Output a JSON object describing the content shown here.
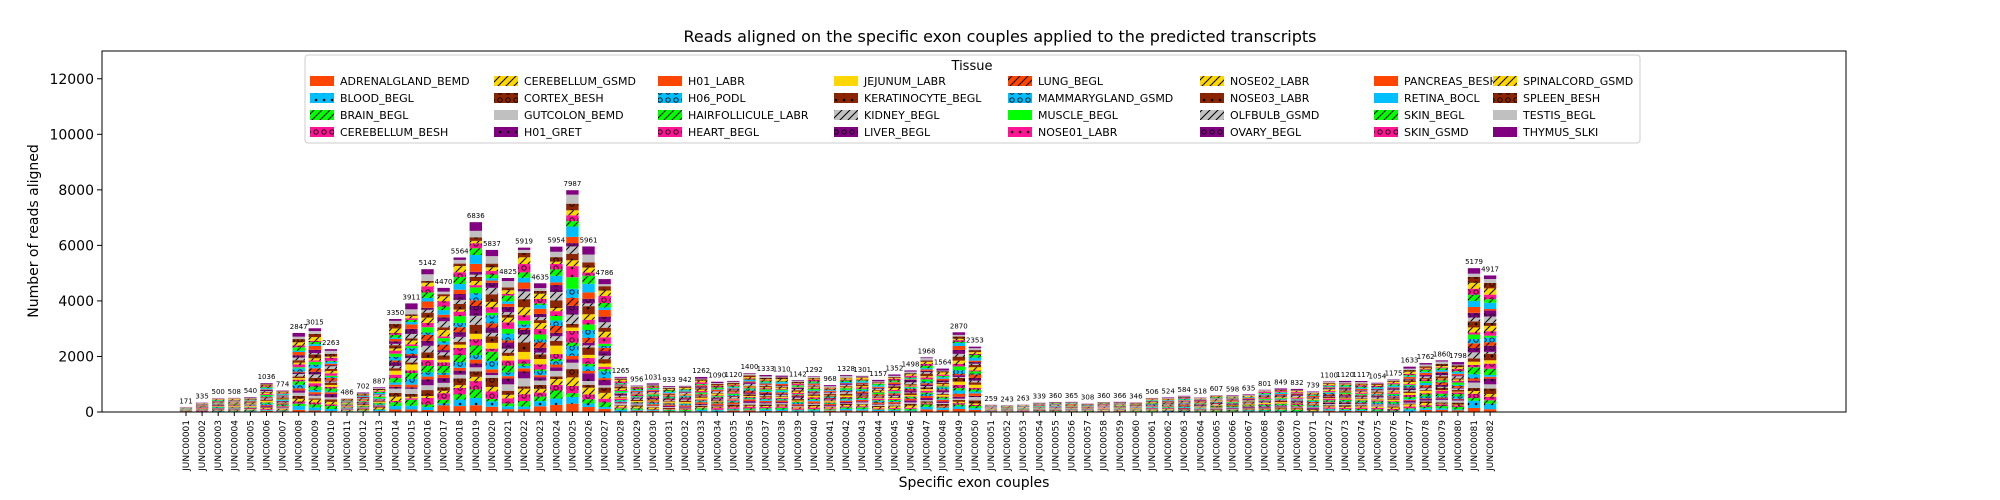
{
  "chart_data": {
    "type": "bar",
    "stacked": true,
    "title": "Reads aligned on the specific exon couples applied to the predicted transcripts",
    "xlabel": "Specific exon couples",
    "ylabel": "Number of reads aligned",
    "ylim": [
      0,
      13000
    ],
    "yticks": [
      0,
      2000,
      4000,
      6000,
      8000,
      10000,
      12000
    ],
    "grid": false,
    "legend": {
      "title": "Tissue",
      "placement": "top-center",
      "columns": 8
    },
    "categories": [
      "JUNC00001",
      "JUNC00002",
      "JUNC00003",
      "JUNC00004",
      "JUNC00005",
      "JUNC00006",
      "JUNC00007",
      "JUNC00008",
      "JUNC00009",
      "JUNC00010",
      "JUNC00011",
      "JUNC00012",
      "JUNC00013",
      "JUNC00014",
      "JUNC00015",
      "JUNC00016",
      "JUNC00017",
      "JUNC00018",
      "JUNC00019",
      "JUNC00020",
      "JUNC00021",
      "JUNC00022",
      "JUNC00023",
      "JUNC00024",
      "JUNC00025",
      "JUNC00026",
      "JUNC00027",
      "JUNC00028",
      "JUNC00029",
      "JUNC00030",
      "JUNC00031",
      "JUNC00032",
      "JUNC00033",
      "JUNC00034",
      "JUNC00035",
      "JUNC00036",
      "JUNC00037",
      "JUNC00038",
      "JUNC00039",
      "JUNC00040",
      "JUNC00041",
      "JUNC00042",
      "JUNC00043",
      "JUNC00044",
      "JUNC00045",
      "JUNC00046",
      "JUNC00047",
      "JUNC00048",
      "JUNC00049",
      "JUNC00050",
      "JUNC00051",
      "JUNC00052",
      "JUNC00053",
      "JUNC00054",
      "JUNC00055",
      "JUNC00056",
      "JUNC00057",
      "JUNC00058",
      "JUNC00059",
      "JUNC00060",
      "JUNC00061",
      "JUNC00062",
      "JUNC00063",
      "JUNC00064",
      "JUNC00065",
      "JUNC00066",
      "JUNC00067",
      "JUNC00068",
      "JUNC00069",
      "JUNC00070",
      "JUNC00071",
      "JUNC00072",
      "JUNC00073",
      "JUNC00074",
      "JUNC00075",
      "JUNC00076",
      "JUNC00077",
      "JUNC00078",
      "JUNC00079",
      "JUNC00080",
      "JUNC00081",
      "JUNC00082"
    ],
    "totals": [
      171,
      335,
      500,
      508,
      540,
      1036,
      774,
      2847,
      3015,
      2263,
      486,
      702,
      887,
      3350,
      3911,
      5142,
      4470,
      5564,
      6836,
      5837,
      4825,
      5919,
      4635,
      5954,
      7987,
      5961,
      4786,
      1265,
      956,
      1031,
      933,
      942,
      1262,
      1090,
      1120,
      1400,
      1333,
      1310,
      1142,
      1292,
      968,
      1328,
      1301,
      1157,
      1352,
      1498,
      1968,
      1564,
      2870,
      2353,
      259,
      243,
      263,
      339,
      360,
      365,
      308,
      360,
      366,
      346,
      506,
      524,
      584,
      518,
      607,
      598,
      635,
      801,
      849,
      832,
      739,
      1100,
      1120,
      1117,
      1054,
      1175,
      1633,
      1762,
      1860,
      1798,
      5179,
      4917
    ],
    "series": [
      {
        "name": "ADRENALGLAND_BEMD",
        "color": "#FF4500",
        "hatch": "none"
      },
      {
        "name": "BLOOD_BEGL",
        "color": "#00BFFF",
        "hatch": "dot"
      },
      {
        "name": "BRAIN_BEGL",
        "color": "#00FF00",
        "hatch": "slash"
      },
      {
        "name": "CEREBELLUM_BESH",
        "color": "#FF1493",
        "hatch": "ring"
      },
      {
        "name": "CEREBELLUM_GSMD",
        "color": "#FFD700",
        "hatch": "slash"
      },
      {
        "name": "CORTEX_BESH",
        "color": "#8B2500",
        "hatch": "ring"
      },
      {
        "name": "GUTCOLON_BEMD",
        "color": "#C0C0C0",
        "hatch": "none"
      },
      {
        "name": "H01_GRET",
        "color": "#800080",
        "hatch": "dot"
      },
      {
        "name": "H01_LABR",
        "color": "#FF4500",
        "hatch": "none"
      },
      {
        "name": "H06_PODL",
        "color": "#00BFFF",
        "hatch": "ring"
      },
      {
        "name": "HAIRFOLLICULE_LABR",
        "color": "#00FF00",
        "hatch": "slash"
      },
      {
        "name": "HEART_BEGL",
        "color": "#FF1493",
        "hatch": "ring"
      },
      {
        "name": "JEJUNUM_LABR",
        "color": "#FFD700",
        "hatch": "none"
      },
      {
        "name": "KERATINOCYTE_BEGL",
        "color": "#8B2500",
        "hatch": "dot"
      },
      {
        "name": "KIDNEY_BEGL",
        "color": "#C0C0C0",
        "hatch": "slash"
      },
      {
        "name": "LIVER_BEGL",
        "color": "#800080",
        "hatch": "ring"
      },
      {
        "name": "LUNG_BEGL",
        "color": "#FF4500",
        "hatch": "slash"
      },
      {
        "name": "MAMMARYGLAND_GSMD",
        "color": "#00BFFF",
        "hatch": "ring"
      },
      {
        "name": "MUSCLE_BEGL",
        "color": "#00FF00",
        "hatch": "none"
      },
      {
        "name": "NOSE01_LABR",
        "color": "#FF1493",
        "hatch": "dot"
      },
      {
        "name": "NOSE02_LABR",
        "color": "#FFD700",
        "hatch": "slash"
      },
      {
        "name": "NOSE03_LABR",
        "color": "#8B2500",
        "hatch": "dot"
      },
      {
        "name": "OLFBULB_GSMD",
        "color": "#C0C0C0",
        "hatch": "slash"
      },
      {
        "name": "OVARY_BEGL",
        "color": "#800080",
        "hatch": "ring"
      },
      {
        "name": "PANCREAS_BESH",
        "color": "#FF4500",
        "hatch": "none"
      },
      {
        "name": "RETINA_BOCL",
        "color": "#00BFFF",
        "hatch": "none"
      },
      {
        "name": "SKIN_BEGL",
        "color": "#00FF00",
        "hatch": "slash"
      },
      {
        "name": "SKIN_GSMD",
        "color": "#FF1493",
        "hatch": "ring"
      },
      {
        "name": "SPINALCORD_GSMD",
        "color": "#FFD700",
        "hatch": "slash"
      },
      {
        "name": "SPLEEN_BESH",
        "color": "#8B2500",
        "hatch": "ring"
      },
      {
        "name": "TESTIS_BEGL",
        "color": "#C0C0C0",
        "hatch": "none"
      },
      {
        "name": "THYMUS_SLKI",
        "color": "#800080",
        "hatch": "none"
      }
    ]
  }
}
